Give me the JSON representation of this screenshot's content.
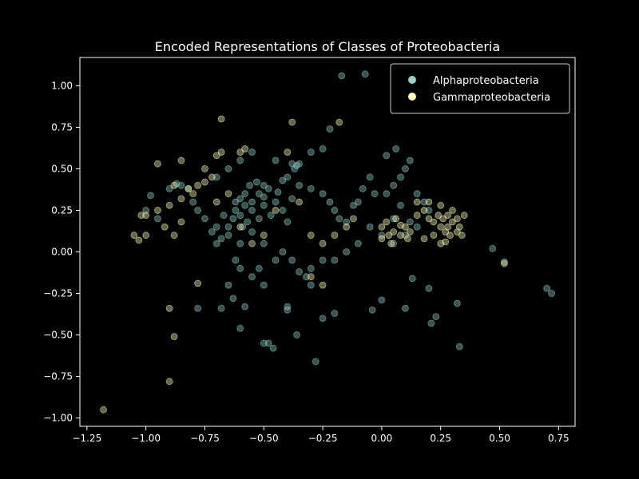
{
  "chart_data": {
    "type": "scatter",
    "title": "Encoded Representations of Classes of Proteobacteria",
    "xlabel": "",
    "ylabel": "",
    "xlim": [
      -1.28,
      0.82
    ],
    "ylim": [
      -1.05,
      1.17
    ],
    "xticks": [
      -1.25,
      -1.0,
      -0.75,
      -0.5,
      -0.25,
      0.0,
      0.25,
      0.5,
      0.75
    ],
    "xtick_labels": [
      "−1.25",
      "−1.00",
      "−0.75",
      "−0.50",
      "−0.25",
      "0.00",
      "0.25",
      "0.50",
      "0.75"
    ],
    "yticks": [
      -1.0,
      -0.75,
      -0.5,
      -0.25,
      0.0,
      0.25,
      0.5,
      0.75,
      1.0
    ],
    "ytick_labels": [
      "−1.00",
      "−0.75",
      "−0.50",
      "−0.25",
      "0.00",
      "0.25",
      "0.50",
      "0.75",
      "1.00"
    ],
    "grid": false,
    "legend_position": "top-right",
    "background_color": "#000000",
    "axis_color": "#ffffff",
    "marker_opacity": 0.4,
    "series": [
      {
        "name": "Alphaproteobacteria",
        "color": "#8dd3c7",
        "points": [
          [
            -0.62,
            0.25
          ],
          [
            -0.6,
            0.22
          ],
          [
            -0.58,
            0.28
          ],
          [
            -0.55,
            0.3
          ],
          [
            -0.57,
            0.18
          ],
          [
            -0.63,
            0.2
          ],
          [
            -0.6,
            0.32
          ],
          [
            -0.52,
            0.35
          ],
          [
            -0.5,
            0.4
          ],
          [
            -0.53,
            0.42
          ],
          [
            -0.48,
            0.38
          ],
          [
            -0.55,
            0.25
          ],
          [
            -0.59,
            0.15
          ],
          [
            -0.65,
            0.15
          ],
          [
            -0.67,
            0.22
          ],
          [
            -0.62,
            0.3
          ],
          [
            -0.58,
            0.35
          ],
          [
            -0.5,
            0.28
          ],
          [
            -0.47,
            0.22
          ],
          [
            -0.45,
            0.3
          ],
          [
            -0.42,
            0.25
          ],
          [
            -0.4,
            0.18
          ],
          [
            -0.38,
            0.32
          ],
          [
            -0.36,
            0.52
          ],
          [
            -0.38,
            0.53
          ],
          [
            -0.35,
            0.53
          ],
          [
            -0.37,
            0.5
          ],
          [
            -0.7,
            0.05
          ],
          [
            -0.68,
            0.08
          ],
          [
            -0.72,
            0.12
          ],
          [
            -0.75,
            0.2
          ],
          [
            -0.78,
            0.25
          ],
          [
            -0.8,
            0.3
          ],
          [
            -0.82,
            0.38
          ],
          [
            -0.85,
            0.4
          ],
          [
            -0.7,
            0.45
          ],
          [
            -0.65,
            0.5
          ],
          [
            -0.6,
            0.55
          ],
          [
            -0.55,
            0.6
          ],
          [
            -0.45,
            0.55
          ],
          [
            -0.4,
            0.45
          ],
          [
            -0.35,
            0.4
          ],
          [
            -0.3,
            0.38
          ],
          [
            -0.25,
            0.35
          ],
          [
            -0.22,
            0.3
          ],
          [
            -0.2,
            0.25
          ],
          [
            -0.18,
            0.2
          ],
          [
            -0.15,
            0.18
          ],
          [
            -0.12,
            0.28
          ],
          [
            -0.1,
            0.3
          ],
          [
            -0.08,
            0.38
          ],
          [
            -0.05,
            0.45
          ],
          [
            -0.03,
            0.35
          ],
          [
            0.02,
            0.35
          ],
          [
            0.05,
            0.4
          ],
          [
            0.08,
            0.45
          ],
          [
            0.1,
            0.5
          ],
          [
            0.12,
            0.55
          ],
          [
            0.15,
            0.35
          ],
          [
            0.18,
            0.3
          ],
          [
            0.2,
            0.25
          ],
          [
            0.15,
            0.15
          ],
          [
            0.1,
            0.1
          ],
          [
            0.05,
            0.05
          ],
          [
            0.0,
            0.1
          ],
          [
            -0.05,
            0.15
          ],
          [
            -0.1,
            0.05
          ],
          [
            -0.15,
            0.0
          ],
          [
            -0.2,
            -0.05
          ],
          [
            -0.25,
            -0.05
          ],
          [
            -0.3,
            -0.1
          ],
          [
            -0.32,
            -0.15
          ],
          [
            -0.35,
            -0.12
          ],
          [
            -0.38,
            -0.05
          ],
          [
            -0.42,
            0.0
          ],
          [
            -0.45,
            -0.05
          ],
          [
            -0.5,
            0.05
          ],
          [
            -0.52,
            -0.1
          ],
          [
            -0.55,
            -0.15
          ],
          [
            -0.6,
            -0.1
          ],
          [
            -0.62,
            -0.05
          ],
          [
            -0.65,
            -0.2
          ],
          [
            -0.63,
            -0.28
          ],
          [
            -0.58,
            -0.33
          ],
          [
            -0.6,
            -0.46
          ],
          [
            -0.5,
            -0.2
          ],
          [
            -0.48,
            -0.55
          ],
          [
            -0.46,
            -0.58
          ],
          [
            -0.5,
            -0.55
          ],
          [
            -0.4,
            -0.35
          ],
          [
            -0.36,
            -0.5
          ],
          [
            -0.28,
            -0.66
          ],
          [
            -0.25,
            -0.4
          ],
          [
            -0.2,
            -0.37
          ],
          [
            -0.3,
            -0.2
          ],
          [
            -0.04,
            -0.35
          ],
          [
            0.0,
            -0.29
          ],
          [
            0.1,
            -0.34
          ],
          [
            0.13,
            -0.16
          ],
          [
            0.2,
            -0.22
          ],
          [
            0.21,
            -0.43
          ],
          [
            0.23,
            -0.39
          ],
          [
            0.33,
            -0.57
          ],
          [
            0.32,
            -0.31
          ],
          [
            0.47,
            0.02
          ],
          [
            0.52,
            -0.06
          ],
          [
            0.7,
            -0.22
          ],
          [
            0.72,
            -0.25
          ],
          [
            -0.17,
            1.06
          ],
          [
            -0.07,
            1.07
          ],
          [
            -0.87,
            0.41
          ],
          [
            -0.9,
            0.38
          ],
          [
            -0.95,
            0.2
          ],
          [
            -1.0,
            0.25
          ],
          [
            -0.98,
            0.34
          ],
          [
            -0.78,
            -0.34
          ],
          [
            -0.68,
            -0.34
          ],
          [
            -0.4,
            -0.33
          ],
          [
            0.05,
            0.2
          ],
          [
            0.08,
            0.28
          ],
          [
            0.12,
            0.18
          ],
          [
            0.02,
            0.58
          ],
          [
            0.06,
            0.62
          ],
          [
            -0.3,
            0.6
          ],
          [
            -0.25,
            0.62
          ],
          [
            -0.22,
            0.74
          ],
          [
            -0.65,
            0.1
          ],
          [
            -0.7,
            0.15
          ],
          [
            -0.6,
            0.05
          ],
          [
            -0.55,
            0.12
          ],
          [
            -0.52,
            0.2
          ],
          [
            -0.56,
            0.4
          ],
          [
            -0.5,
            0.33
          ],
          [
            -0.44,
            0.36
          ],
          [
            -0.42,
            0.43
          ]
        ]
      },
      {
        "name": "Gammaproteobacteria",
        "color": "#ffffb3",
        "points": [
          [
            0.0,
            0.15
          ],
          [
            0.02,
            0.18
          ],
          [
            0.05,
            0.12
          ],
          [
            0.08,
            0.1
          ],
          [
            0.1,
            0.15
          ],
          [
            0.03,
            0.1
          ],
          [
            0.06,
            0.2
          ],
          [
            0.12,
            0.12
          ],
          [
            0.0,
            0.08
          ],
          [
            0.04,
            0.05
          ],
          [
            0.08,
            0.16
          ],
          [
            0.11,
            0.08
          ],
          [
            0.26,
            0.2
          ],
          [
            0.28,
            0.22
          ],
          [
            0.3,
            0.18
          ],
          [
            0.25,
            0.15
          ],
          [
            0.32,
            0.2
          ],
          [
            0.3,
            0.25
          ],
          [
            0.28,
            0.15
          ],
          [
            0.24,
            0.22
          ],
          [
            0.33,
            0.15
          ],
          [
            0.27,
            0.12
          ],
          [
            0.22,
            0.18
          ],
          [
            0.35,
            0.22
          ],
          [
            0.2,
            0.2
          ],
          [
            0.18,
            0.25
          ],
          [
            0.15,
            0.22
          ],
          [
            0.25,
            0.28
          ],
          [
            0.29,
            0.1
          ],
          [
            0.32,
            0.12
          ],
          [
            -0.8,
            0.35
          ],
          [
            -0.82,
            0.38
          ],
          [
            -0.85,
            0.32
          ],
          [
            -0.78,
            0.4
          ],
          [
            -0.75,
            0.42
          ],
          [
            -0.72,
            0.45
          ],
          [
            -0.88,
            0.4
          ],
          [
            -0.9,
            0.28
          ],
          [
            -0.95,
            0.25
          ],
          [
            -1.0,
            0.22
          ],
          [
            -1.02,
            0.22
          ],
          [
            -1.05,
            0.1
          ],
          [
            -1.03,
            0.07
          ],
          [
            -1.0,
            0.1
          ],
          [
            -0.92,
            0.15
          ],
          [
            -0.88,
            0.1
          ],
          [
            -0.85,
            0.18
          ],
          [
            -0.75,
            0.5
          ],
          [
            -0.7,
            0.58
          ],
          [
            -0.68,
            0.6
          ],
          [
            -0.6,
            0.6
          ],
          [
            -0.58,
            0.62
          ],
          [
            -0.4,
            0.6
          ],
          [
            -0.38,
            0.78
          ],
          [
            -0.18,
            0.78
          ],
          [
            -0.68,
            0.8
          ],
          [
            -0.85,
            0.55
          ],
          [
            -0.95,
            0.53
          ],
          [
            -0.78,
            -0.19
          ],
          [
            -0.88,
            -0.51
          ],
          [
            -0.9,
            -0.34
          ],
          [
            -0.9,
            -0.78
          ],
          [
            -1.18,
            -0.95
          ],
          [
            0.52,
            -0.07
          ],
          [
            0.25,
            0.05
          ],
          [
            0.27,
            0.06
          ],
          [
            -0.25,
            -0.2
          ],
          [
            -0.3,
            -0.15
          ],
          [
            -0.2,
            0.1
          ],
          [
            -0.15,
            0.15
          ],
          [
            -0.12,
            0.2
          ],
          [
            -0.35,
            0.3
          ],
          [
            -0.45,
            0.25
          ],
          [
            -0.5,
            0.1
          ],
          [
            -0.55,
            0.05
          ],
          [
            -0.6,
            0.15
          ],
          [
            -0.65,
            0.35
          ],
          [
            -0.7,
            0.3
          ],
          [
            -0.3,
            0.1
          ],
          [
            -0.25,
            0.05
          ],
          [
            0.15,
            0.3
          ],
          [
            0.2,
            0.3
          ],
          [
            0.18,
            0.08
          ],
          [
            0.22,
            0.1
          ],
          [
            0.34,
            0.1
          ]
        ]
      }
    ]
  }
}
